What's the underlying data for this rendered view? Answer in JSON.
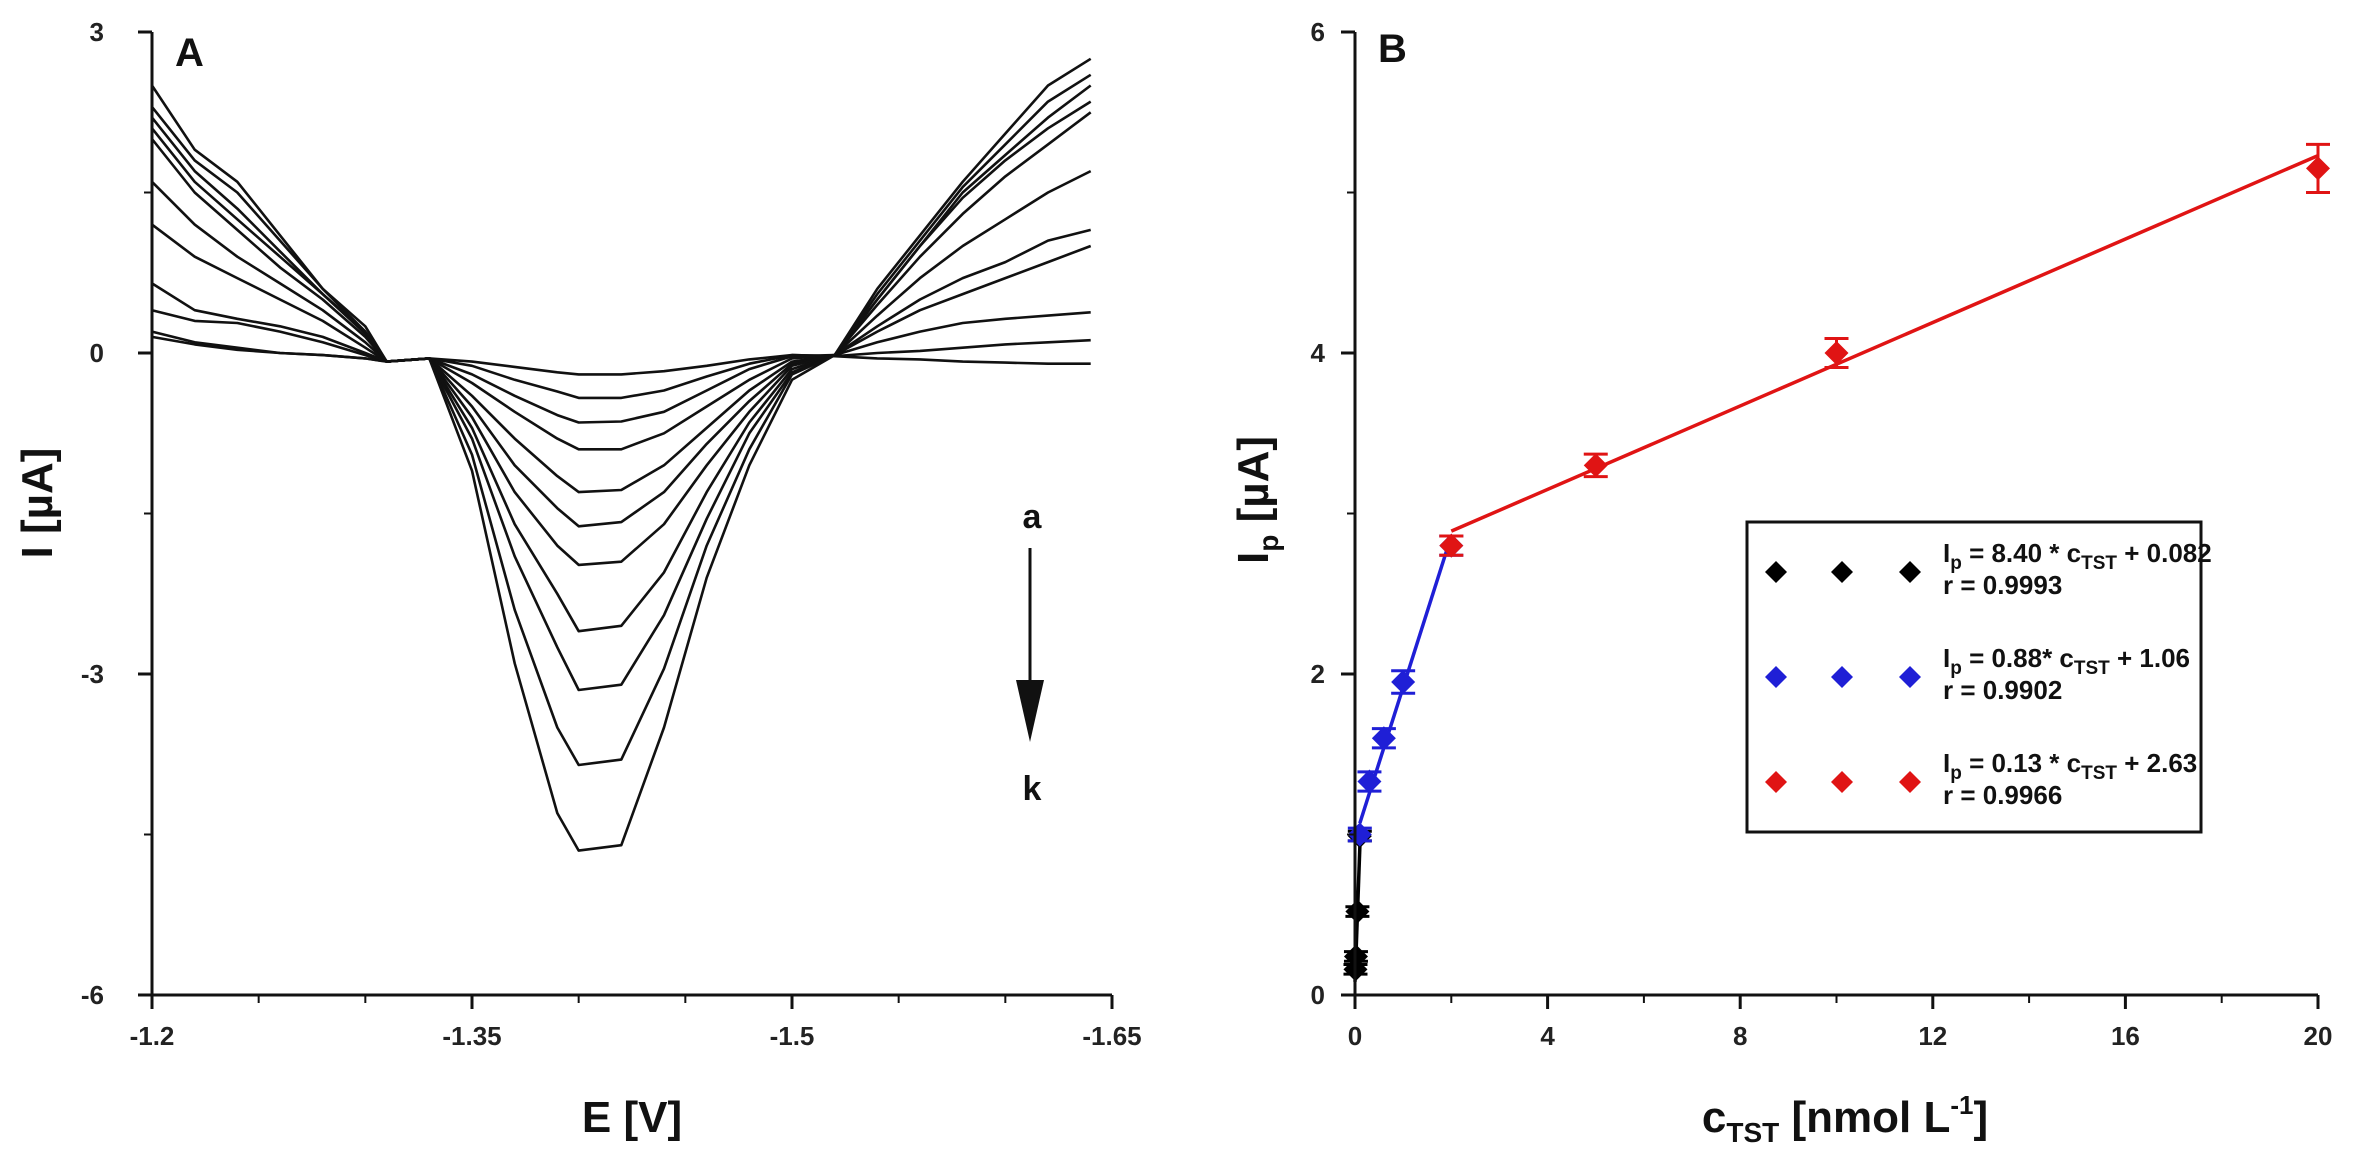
{
  "chart_data": [
    {
      "type": "line",
      "panel": "A",
      "xlabel": "E [V]",
      "ylabel": "I [µA]",
      "xlim": [
        -1.2,
        -1.65
      ],
      "ylim": [
        -6,
        3
      ],
      "xticks": [
        "-1.2",
        "-1.35",
        "-1.5",
        "-1.65"
      ],
      "yticks": [
        "3",
        "0",
        "-3",
        "-6"
      ],
      "x": [
        -1.2,
        -1.22,
        -1.24,
        -1.26,
        -1.28,
        -1.3,
        -1.31,
        -1.33,
        -1.35,
        -1.37,
        -1.39,
        -1.4,
        -1.42,
        -1.44,
        -1.46,
        -1.48,
        -1.5,
        -1.52,
        -1.54,
        -1.56,
        -1.58,
        -1.6,
        -1.62,
        -1.64
      ],
      "annotation_top": "a",
      "annotation_bottom": "k",
      "series": [
        {
          "values": [
            0.15,
            0.08,
            0.03,
            0.0,
            -0.02,
            -0.05,
            -0.08,
            -0.05,
            -0.08,
            -0.13,
            -0.18,
            -0.2,
            -0.2,
            -0.17,
            -0.12,
            -0.06,
            -0.02,
            -0.03,
            -0.05,
            -0.06,
            -0.08,
            -0.09,
            -0.1,
            -0.1
          ]
        },
        {
          "values": [
            0.2,
            0.1,
            0.05,
            0.0,
            -0.02,
            -0.05,
            -0.08,
            -0.05,
            -0.12,
            -0.25,
            -0.36,
            -0.42,
            -0.42,
            -0.35,
            -0.22,
            -0.1,
            -0.02,
            -0.03,
            0.0,
            0.02,
            0.05,
            0.08,
            0.1,
            0.12
          ]
        },
        {
          "values": [
            0.4,
            0.3,
            0.28,
            0.2,
            0.1,
            -0.02,
            -0.08,
            -0.05,
            -0.2,
            -0.4,
            -0.58,
            -0.65,
            -0.64,
            -0.55,
            -0.35,
            -0.15,
            -0.03,
            -0.02,
            0.1,
            0.2,
            0.28,
            0.32,
            0.35,
            0.38
          ]
        },
        {
          "values": [
            0.65,
            0.4,
            0.32,
            0.25,
            0.15,
            0.0,
            -0.08,
            -0.05,
            -0.28,
            -0.55,
            -0.8,
            -0.9,
            -0.9,
            -0.75,
            -0.5,
            -0.25,
            -0.05,
            -0.02,
            0.2,
            0.4,
            0.55,
            0.7,
            0.85,
            1.0
          ]
        },
        {
          "values": [
            1.2,
            0.9,
            0.7,
            0.5,
            0.3,
            0.05,
            -0.08,
            -0.05,
            -0.4,
            -0.8,
            -1.15,
            -1.3,
            -1.28,
            -1.05,
            -0.7,
            -0.35,
            -0.08,
            -0.02,
            0.25,
            0.5,
            0.7,
            0.85,
            1.05,
            1.15
          ]
        },
        {
          "values": [
            1.6,
            1.2,
            0.9,
            0.65,
            0.4,
            0.1,
            -0.08,
            -0.05,
            -0.5,
            -1.05,
            -1.45,
            -1.62,
            -1.58,
            -1.3,
            -0.85,
            -0.45,
            -0.1,
            -0.02,
            0.35,
            0.7,
            1.0,
            1.25,
            1.5,
            1.7
          ]
        },
        {
          "values": [
            2.0,
            1.5,
            1.15,
            0.8,
            0.5,
            0.15,
            -0.08,
            -0.05,
            -0.6,
            -1.3,
            -1.8,
            -1.98,
            -1.95,
            -1.6,
            -1.05,
            -0.55,
            -0.12,
            -0.02,
            0.45,
            0.9,
            1.3,
            1.65,
            1.95,
            2.25
          ]
        },
        {
          "values": [
            2.1,
            1.6,
            1.25,
            0.9,
            0.55,
            0.18,
            -0.08,
            -0.05,
            -0.7,
            -1.6,
            -2.25,
            -2.6,
            -2.55,
            -2.05,
            -1.3,
            -0.65,
            -0.15,
            -0.02,
            0.5,
            1.0,
            1.45,
            1.8,
            2.1,
            2.35
          ]
        },
        {
          "values": [
            2.2,
            1.7,
            1.35,
            0.95,
            0.55,
            0.2,
            -0.08,
            -0.05,
            -0.8,
            -1.9,
            -2.75,
            -3.15,
            -3.1,
            -2.45,
            -1.55,
            -0.75,
            -0.18,
            -0.02,
            0.5,
            1.0,
            1.5,
            1.85,
            2.2,
            2.5
          ]
        },
        {
          "values": [
            2.3,
            1.8,
            1.5,
            1.05,
            0.6,
            0.25,
            -0.08,
            -0.05,
            -0.95,
            -2.4,
            -3.5,
            -3.85,
            -3.8,
            -2.95,
            -1.8,
            -0.9,
            -0.2,
            -0.02,
            0.55,
            1.05,
            1.55,
            1.95,
            2.35,
            2.6
          ]
        },
        {
          "values": [
            2.5,
            1.9,
            1.6,
            1.1,
            0.6,
            0.2,
            -0.08,
            -0.05,
            -1.1,
            -2.9,
            -4.3,
            -4.65,
            -4.6,
            -3.5,
            -2.1,
            -1.05,
            -0.25,
            -0.02,
            0.6,
            1.1,
            1.6,
            2.05,
            2.5,
            2.75
          ]
        }
      ]
    },
    {
      "type": "scatter",
      "panel": "B",
      "xlabel": "c",
      "xlabel_sub": "TST",
      "xlabel_unit": " [nmol L",
      "xlabel_sup": "-1",
      "xlabel_end": "]",
      "ylabel": "I",
      "ylabel_sub": "p",
      "ylabel_unit": " [µA]",
      "xlim": [
        0,
        20
      ],
      "ylim": [
        0,
        6
      ],
      "xticks": [
        "0",
        "4",
        "8",
        "12",
        "16",
        "20"
      ],
      "yticks": [
        "0",
        "2",
        "4",
        "6"
      ],
      "series": [
        {
          "color": "#000000",
          "points": [
            [
              0.01,
              0.16,
              0.03
            ],
            [
              0.02,
              0.24,
              0.03
            ],
            [
              0.05,
              0.52,
              0.03
            ],
            [
              0.1,
              0.99,
              0.03
            ]
          ],
          "fit": [
            [
              0.0,
              0.082
            ],
            [
              0.11,
              1.0
            ]
          ],
          "legend": {
            "eq_lhs": "I",
            "eq_lhs_sub": "p",
            "eq_mid": " = 8.40 * c",
            "eq_mid_sub": "TST",
            "eq_rhs": " + 0.082",
            "r": "r = 0.9993"
          }
        },
        {
          "color": "#1f1fd6",
          "points": [
            [
              0.1,
              1.0,
              0.04
            ],
            [
              0.3,
              1.33,
              0.06
            ],
            [
              0.6,
              1.6,
              0.06
            ],
            [
              1.0,
              1.95,
              0.07
            ],
            [
              2.0,
              2.8,
              0.06
            ]
          ],
          "fit": [
            [
              0.1,
              1.07
            ],
            [
              2.0,
              2.86
            ]
          ],
          "legend": {
            "eq_lhs": "I",
            "eq_lhs_sub": "p",
            "eq_mid": " = 0.88* c",
            "eq_mid_sub": "TST",
            "eq_rhs": " + 1.06",
            "r": "r = 0.9902"
          }
        },
        {
          "color": "#e01414",
          "points": [
            [
              2.0,
              2.8,
              0.06
            ],
            [
              5.0,
              3.3,
              0.07
            ],
            [
              10.0,
              4.0,
              0.09
            ],
            [
              20.0,
              5.15,
              0.15
            ]
          ],
          "fit": [
            [
              2.0,
              2.89
            ],
            [
              20.0,
              5.23
            ]
          ],
          "legend": {
            "eq_lhs": "I",
            "eq_lhs_sub": "p",
            "eq_mid": " = 0.13 * c",
            "eq_mid_sub": "TST",
            "eq_rhs": " + 2.63",
            "r": "r = 0.9966"
          }
        }
      ],
      "legend_position": "right, middle"
    }
  ]
}
